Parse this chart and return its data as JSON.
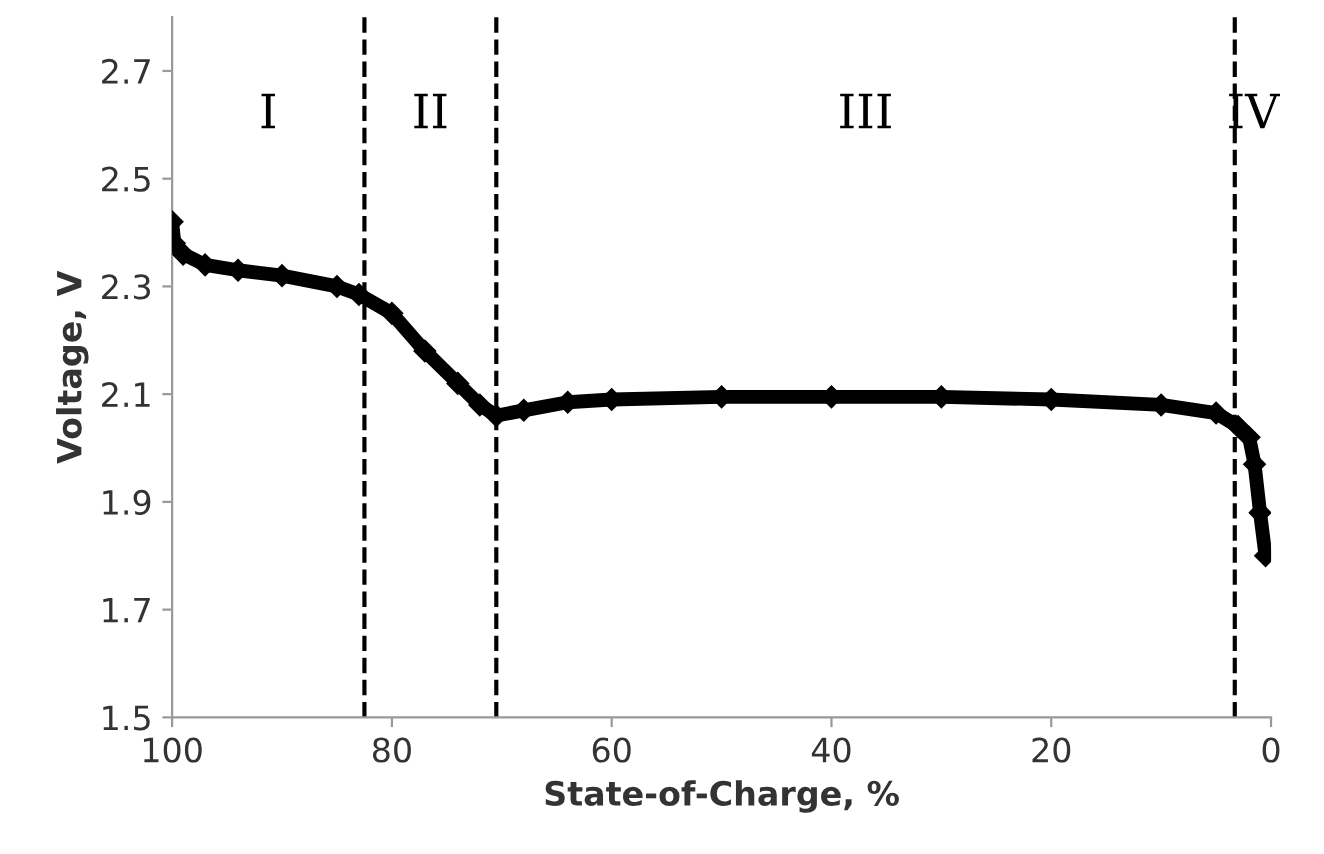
{
  "chart_data": {
    "type": "line",
    "xlabel": "State-of-Charge, %",
    "ylabel": "Voltage, V",
    "x": [
      100,
      99.8,
      99,
      97,
      94,
      90,
      85,
      83,
      80,
      77,
      74,
      72,
      70.5,
      68,
      64,
      60,
      50,
      40,
      30,
      20,
      10,
      5,
      3,
      2,
      1.5,
      1,
      0.5
    ],
    "series": [
      {
        "color": "#000000",
        "values": [
          2.42,
          2.38,
          2.36,
          2.34,
          2.33,
          2.32,
          2.3,
          2.285,
          2.25,
          2.18,
          2.12,
          2.08,
          2.06,
          2.07,
          2.085,
          2.09,
          2.095,
          2.095,
          2.095,
          2.09,
          2.08,
          2.065,
          2.04,
          2.02,
          1.97,
          1.88,
          1.8
        ]
      }
    ],
    "marker": "diamond",
    "line_style": "solid",
    "xlim": [
      100,
      0
    ],
    "xticks": [
      100,
      80,
      60,
      40,
      20,
      0
    ],
    "ylim": [
      1.5,
      2.8
    ],
    "yticks": [
      1.5,
      1.7,
      1.9,
      2.1,
      2.3,
      2.5,
      2.7
    ],
    "grid": false,
    "legend": false,
    "ref_lines": [
      {
        "axis": "x",
        "value": 82.5,
        "line_style": "dashed",
        "color": "#000000"
      },
      {
        "axis": "x",
        "value": 70.5,
        "line_style": "dashed",
        "color": "#000000"
      },
      {
        "axis": "x",
        "value": 3.3,
        "line_style": "dashed",
        "color": "#000000"
      }
    ],
    "annotations": [
      "I",
      "II",
      "III",
      "IV"
    ]
  }
}
